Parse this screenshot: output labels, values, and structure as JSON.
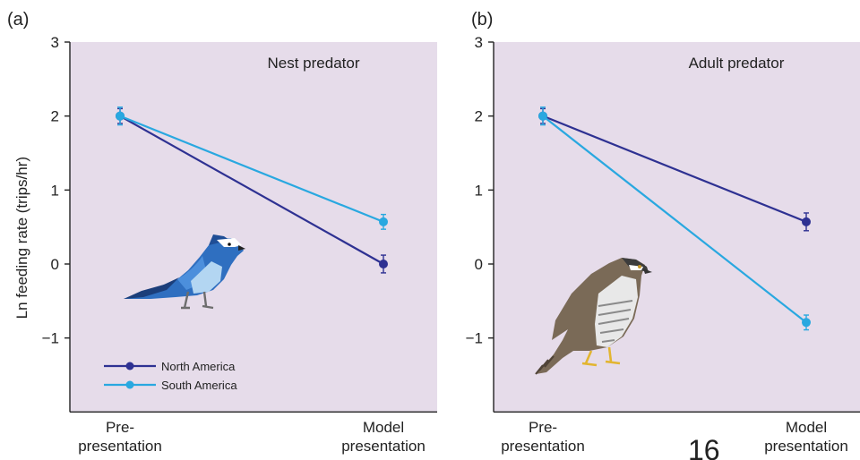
{
  "chart_data": [
    {
      "type": "line",
      "panel_label": "(a)",
      "title": "Nest predator",
      "ylabel": "Ln feeding rate (trips/hr)",
      "ylim": [
        -2,
        3
      ],
      "yticks": [
        3,
        2,
        1,
        0,
        -1
      ],
      "ytick_labels": [
        "3",
        "2",
        "1",
        "0",
        "−1"
      ],
      "categories": [
        [
          "Pre-",
          "presentation"
        ],
        [
          "Model",
          "presentation"
        ]
      ],
      "series": [
        {
          "name": "North America",
          "color": "#2e3192",
          "values": [
            2.0,
            0.0
          ],
          "errors": [
            0.1,
            0.12
          ]
        },
        {
          "name": "South America",
          "color": "#29a8e0",
          "values": [
            2.0,
            0.57
          ],
          "errors": [
            0.12,
            0.1
          ]
        }
      ],
      "legend": "bottom-left",
      "illustration": "blue-jay-icon"
    },
    {
      "type": "line",
      "panel_label": "(b)",
      "title": "Adult predator",
      "ylim": [
        -2,
        3
      ],
      "yticks": [
        3,
        2,
        1,
        0,
        -1
      ],
      "ytick_labels": [
        "3",
        "2",
        "1",
        "0",
        "−1"
      ],
      "categories": [
        [
          "Pre-",
          "presentation"
        ],
        [
          "Model",
          "presentation"
        ]
      ],
      "series": [
        {
          "name": "North America",
          "color": "#2e3192",
          "values": [
            2.0,
            0.57
          ],
          "errors": [
            0.1,
            0.12
          ]
        },
        {
          "name": "South America",
          "color": "#29a8e0",
          "values": [
            2.0,
            -0.79
          ],
          "errors": [
            0.12,
            0.1
          ]
        }
      ],
      "illustration": "hawk-icon"
    }
  ],
  "page_number": "16"
}
